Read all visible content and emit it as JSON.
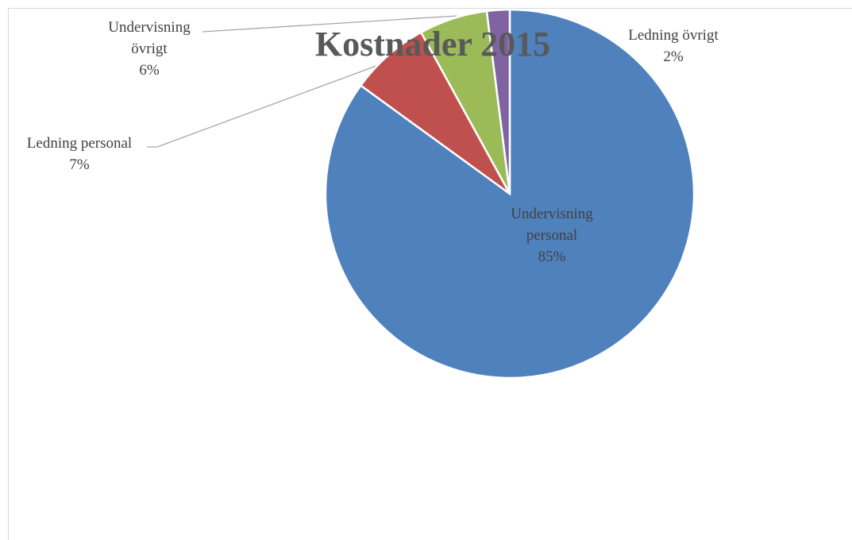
{
  "chart_data": {
    "type": "pie",
    "title": "Kostnader 2015",
    "categories": [
      "Undervisning personal",
      "Ledning personal",
      "Undervisning övrigt",
      "Ledning övrigt"
    ],
    "values": [
      85,
      7,
      6,
      2
    ],
    "value_labels": [
      "85%",
      "7%",
      "6%",
      "2%"
    ],
    "colors": [
      "#4f81bd",
      "#c0504d",
      "#9bbb59",
      "#8064a2"
    ]
  }
}
